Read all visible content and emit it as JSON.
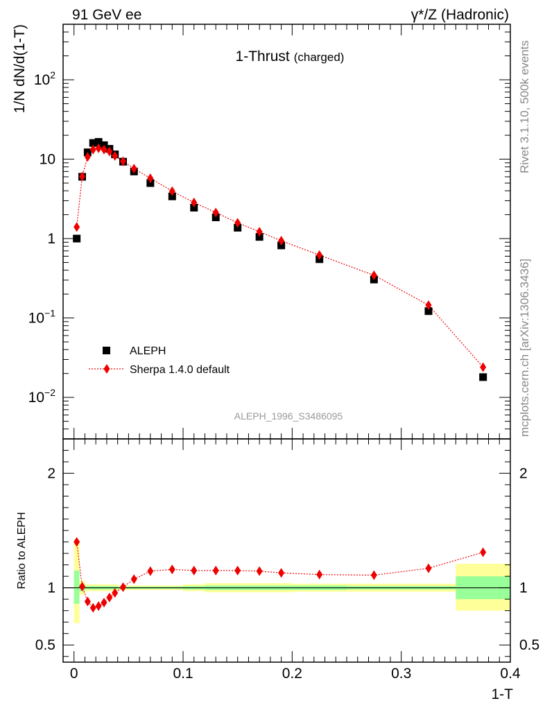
{
  "header": {
    "left_label": "91 GeV ee",
    "right_label": "γ*/Z (Hadronic)"
  },
  "side_labels": {
    "rivet": "Rivet 3.1.10,  500k events",
    "mcplots": "mcplots.cern.ch [arXiv:1306.3436]"
  },
  "chart_data": [
    {
      "type": "scatter",
      "title": "1-Thrust",
      "title_suffix": "(charged)",
      "analysis_tag": "ALEPH_1996_S3486095",
      "xlabel": "1-T",
      "ylabel": "1/N dN/d(1-T)",
      "yscale": "log",
      "xlim": [
        -0.01,
        0.4
      ],
      "ylim": [
        0.003,
        500
      ],
      "yticks": [
        {
          "value": 0.01,
          "label": "10",
          "sup": "−2"
        },
        {
          "value": 0.1,
          "label": "10",
          "sup": "−1"
        },
        {
          "value": 1,
          "label": "1",
          "sup": ""
        },
        {
          "value": 10,
          "label": "10",
          "sup": ""
        },
        {
          "value": 100,
          "label": "10",
          "sup": "2"
        }
      ],
      "legend": {
        "position": "lower-left",
        "entries": [
          "ALEPH",
          "Sherpa 1.4.0 default"
        ]
      },
      "series": [
        {
          "name": "ALEPH",
          "marker": "square",
          "color": "#000000",
          "x": [
            0.0025,
            0.0075,
            0.0125,
            0.0175,
            0.0225,
            0.0275,
            0.0325,
            0.0375,
            0.045,
            0.055,
            0.07,
            0.09,
            0.11,
            0.13,
            0.15,
            0.17,
            0.19,
            0.225,
            0.275,
            0.325,
            0.375
          ],
          "y": [
            1.0,
            6.0,
            12.2,
            16.0,
            16.5,
            15.0,
            13.5,
            11.5,
            9.3,
            7.0,
            5.0,
            3.4,
            2.45,
            1.85,
            1.37,
            1.05,
            0.82,
            0.55,
            0.305,
            0.122,
            0.018
          ]
        },
        {
          "name": "Sherpa 1.4.0 default",
          "marker": "diamond",
          "color": "#ee0000",
          "line": "dotted",
          "x": [
            0.0025,
            0.0075,
            0.0125,
            0.0175,
            0.0225,
            0.0275,
            0.0325,
            0.0375,
            0.045,
            0.055,
            0.07,
            0.09,
            0.11,
            0.13,
            0.15,
            0.17,
            0.19,
            0.225,
            0.275,
            0.325,
            0.375
          ],
          "y": [
            1.4,
            6.05,
            10.7,
            13.2,
            13.7,
            13.2,
            12.5,
            11.0,
            9.4,
            7.6,
            5.75,
            3.95,
            2.85,
            2.13,
            1.58,
            1.22,
            0.94,
            0.62,
            0.345,
            0.145,
            0.024
          ]
        }
      ]
    },
    {
      "type": "scatter",
      "ylabel": "Ratio to ALEPH",
      "xlabel": "1-T",
      "xlim": [
        -0.01,
        0.4
      ],
      "ylim": [
        0.35,
        2.3
      ],
      "yticks": [
        0.5,
        1,
        2
      ],
      "xticks": [
        0,
        0.1,
        0.2,
        0.3,
        0.4
      ],
      "xtick_labels": [
        "0",
        "0.1",
        "0.2",
        "0.3",
        "0.4"
      ],
      "reference_line": 1,
      "bands": [
        {
          "xlo": 0.0,
          "xhi": 0.005,
          "green": [
            0.86,
            1.15
          ],
          "yellow": [
            0.69,
            1.42
          ]
        },
        {
          "xlo": 0.005,
          "xhi": 0.01,
          "green": [
            0.97,
            1.03
          ],
          "yellow": [
            0.94,
            1.06
          ]
        },
        {
          "xlo": 0.01,
          "xhi": 0.04,
          "green": [
            0.985,
            1.015
          ],
          "yellow": [
            0.97,
            1.03
          ]
        },
        {
          "xlo": 0.04,
          "xhi": 0.1,
          "green": [
            0.99,
            1.01
          ],
          "yellow": [
            0.98,
            1.02
          ]
        },
        {
          "xlo": 0.1,
          "xhi": 0.12,
          "green": [
            0.985,
            1.015
          ],
          "yellow": [
            0.97,
            1.03
          ]
        },
        {
          "xlo": 0.12,
          "xhi": 0.2,
          "green": [
            0.98,
            1.02
          ],
          "yellow": [
            0.96,
            1.04
          ]
        },
        {
          "xlo": 0.2,
          "xhi": 0.25,
          "green": [
            0.98,
            1.02
          ],
          "yellow": [
            0.965,
            1.035
          ]
        },
        {
          "xlo": 0.25,
          "xhi": 0.35,
          "green": [
            0.985,
            1.015
          ],
          "yellow": [
            0.965,
            1.035
          ]
        },
        {
          "xlo": 0.35,
          "xhi": 0.4,
          "green": [
            0.9,
            1.1
          ],
          "yellow": [
            0.8,
            1.21
          ]
        }
      ],
      "series": [
        {
          "name": "Sherpa 1.4.0 default",
          "marker": "diamond",
          "color": "#ee0000",
          "line": "dotted",
          "x": [
            0.0025,
            0.0075,
            0.0125,
            0.0175,
            0.0225,
            0.0275,
            0.0325,
            0.0375,
            0.045,
            0.055,
            0.07,
            0.09,
            0.11,
            0.13,
            0.15,
            0.17,
            0.19,
            0.225,
            0.275,
            0.325,
            0.375
          ],
          "y": [
            1.4,
            1.01,
            0.88,
            0.825,
            0.84,
            0.87,
            0.915,
            0.955,
            1.005,
            1.075,
            1.145,
            1.16,
            1.15,
            1.15,
            1.15,
            1.145,
            1.13,
            1.115,
            1.11,
            1.17,
            1.31
          ]
        }
      ]
    }
  ]
}
